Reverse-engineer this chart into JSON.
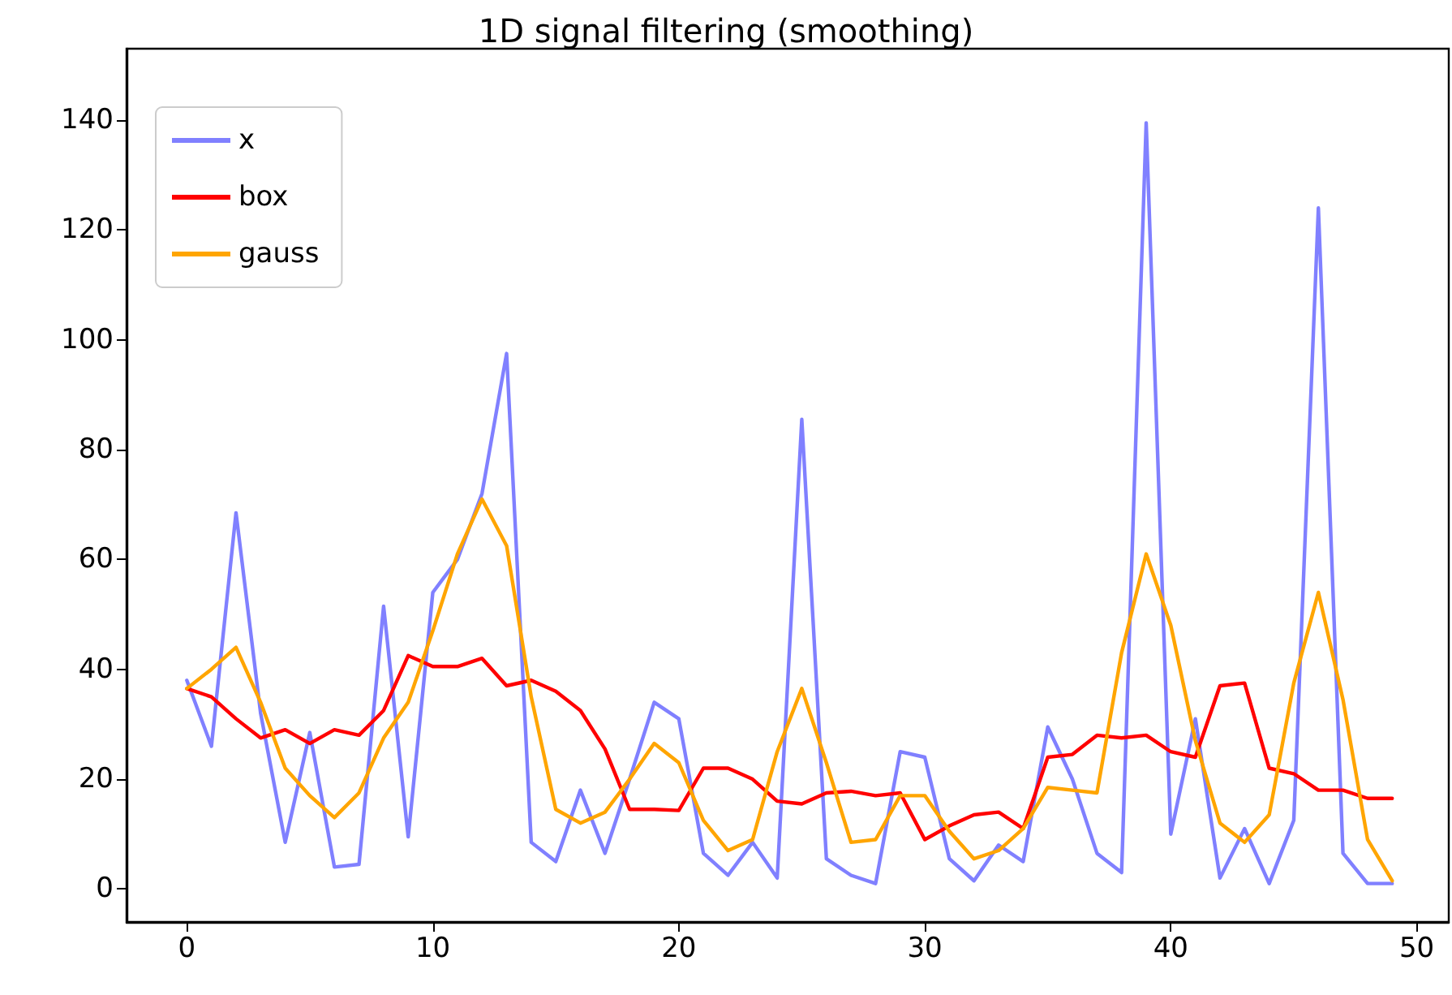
{
  "chart_data": {
    "type": "line",
    "title": "1D signal filtering (smoothing)",
    "x": [
      0,
      1,
      2,
      3,
      4,
      5,
      6,
      7,
      8,
      9,
      10,
      11,
      12,
      13,
      14,
      15,
      16,
      17,
      18,
      19,
      20,
      21,
      22,
      23,
      24,
      25,
      26,
      27,
      28,
      29,
      30,
      31,
      32,
      33,
      34,
      35,
      36,
      37,
      38,
      39,
      40,
      41,
      42,
      43,
      44,
      45,
      46,
      47,
      48,
      49
    ],
    "series": [
      {
        "name": "x",
        "color": "#8080ff",
        "values": [
          38,
          26,
          68.5,
          32,
          8.5,
          28.5,
          4,
          4.5,
          51.5,
          9.5,
          54,
          60,
          72,
          97.5,
          8.5,
          5,
          18,
          6.5,
          20,
          34,
          31,
          6.5,
          2.5,
          8.5,
          2,
          85.5,
          5.5,
          2.5,
          1,
          25,
          24,
          5.5,
          1.5,
          8,
          5,
          29.5,
          20,
          6.5,
          3,
          139.5,
          10,
          31,
          2,
          11,
          1,
          12.5,
          124,
          6.5,
          1,
          1
        ]
      },
      {
        "name": "box",
        "color": "#ff0000",
        "values": [
          36.5,
          35,
          31,
          27.5,
          29,
          26.5,
          29,
          28,
          32.5,
          42.5,
          40.5,
          40.5,
          42,
          37,
          38,
          36,
          32.5,
          25.5,
          14.5,
          14.5,
          14.3,
          22,
          22,
          20,
          16,
          15.5,
          17.5,
          17.8,
          17,
          17.5,
          9,
          11.5,
          13.5,
          14,
          11,
          24,
          24.5,
          28,
          27.5,
          28,
          25,
          24,
          37,
          37.5,
          22,
          21,
          18,
          18,
          16.5,
          16.5
        ]
      },
      {
        "name": "gauss",
        "color": "#ffa500",
        "values": [
          36.5,
          40,
          44,
          34,
          22,
          17,
          13,
          17.5,
          27.5,
          34,
          47,
          61,
          71,
          62.5,
          35,
          14.5,
          12,
          14,
          20,
          26.5,
          23,
          12.5,
          7,
          9,
          25,
          36.5,
          23,
          8.5,
          9,
          17,
          17,
          10.5,
          5.5,
          7,
          11,
          18.5,
          18,
          17.5,
          43,
          61,
          48,
          27,
          12,
          8.5,
          13.5,
          37.5,
          54,
          34.5,
          9,
          1.5
        ]
      }
    ],
    "xlim": [
      -2.45,
      51.3
    ],
    "ylim": [
      -6,
      153
    ],
    "xticks": [
      0,
      10,
      20,
      30,
      40,
      50
    ],
    "yticks": [
      0,
      20,
      40,
      60,
      80,
      100,
      120,
      140
    ],
    "grid": false,
    "legend": "top left",
    "marker": "none",
    "line_style": "solid"
  }
}
